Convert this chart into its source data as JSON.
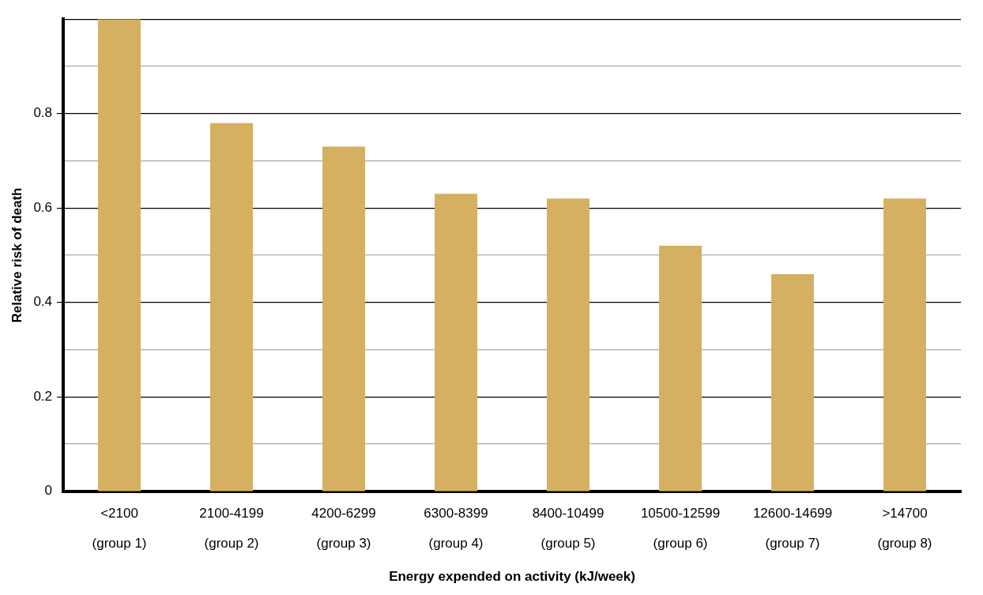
{
  "chart_data": {
    "type": "bar",
    "xlabel": "Energy expended on activity (kJ/week)",
    "ylabel": "Relative risk of death",
    "categories": [
      "<2100\n(group 1)",
      "2100-4199\n(group 2)",
      "4200-6299\n(group 3)",
      "6300-8399\n(group 4)",
      "8400-10499\n(group 5)",
      "10500-12599\n(group 6)",
      "12600-14699\n(group 7)",
      ">14700\n(group 8)"
    ],
    "values": [
      1.0,
      0.78,
      0.73,
      0.63,
      0.62,
      0.52,
      0.46,
      0.62
    ],
    "color": "#d4b060",
    "ylim": [
      0,
      1
    ],
    "yticks": [
      0,
      {
        "value": 0.1,
        "label": null
      },
      0.2,
      {
        "value": 0.3,
        "label": null
      },
      0.4,
      {
        "value": 0.5,
        "label": null
      },
      0.6,
      {
        "value": 0.7,
        "label": null
      },
      0.8,
      {
        "value": 0.9,
        "label": null
      },
      {
        "value": 1,
        "label": null
      }
    ],
    "grid": "y",
    "legend": false
  }
}
